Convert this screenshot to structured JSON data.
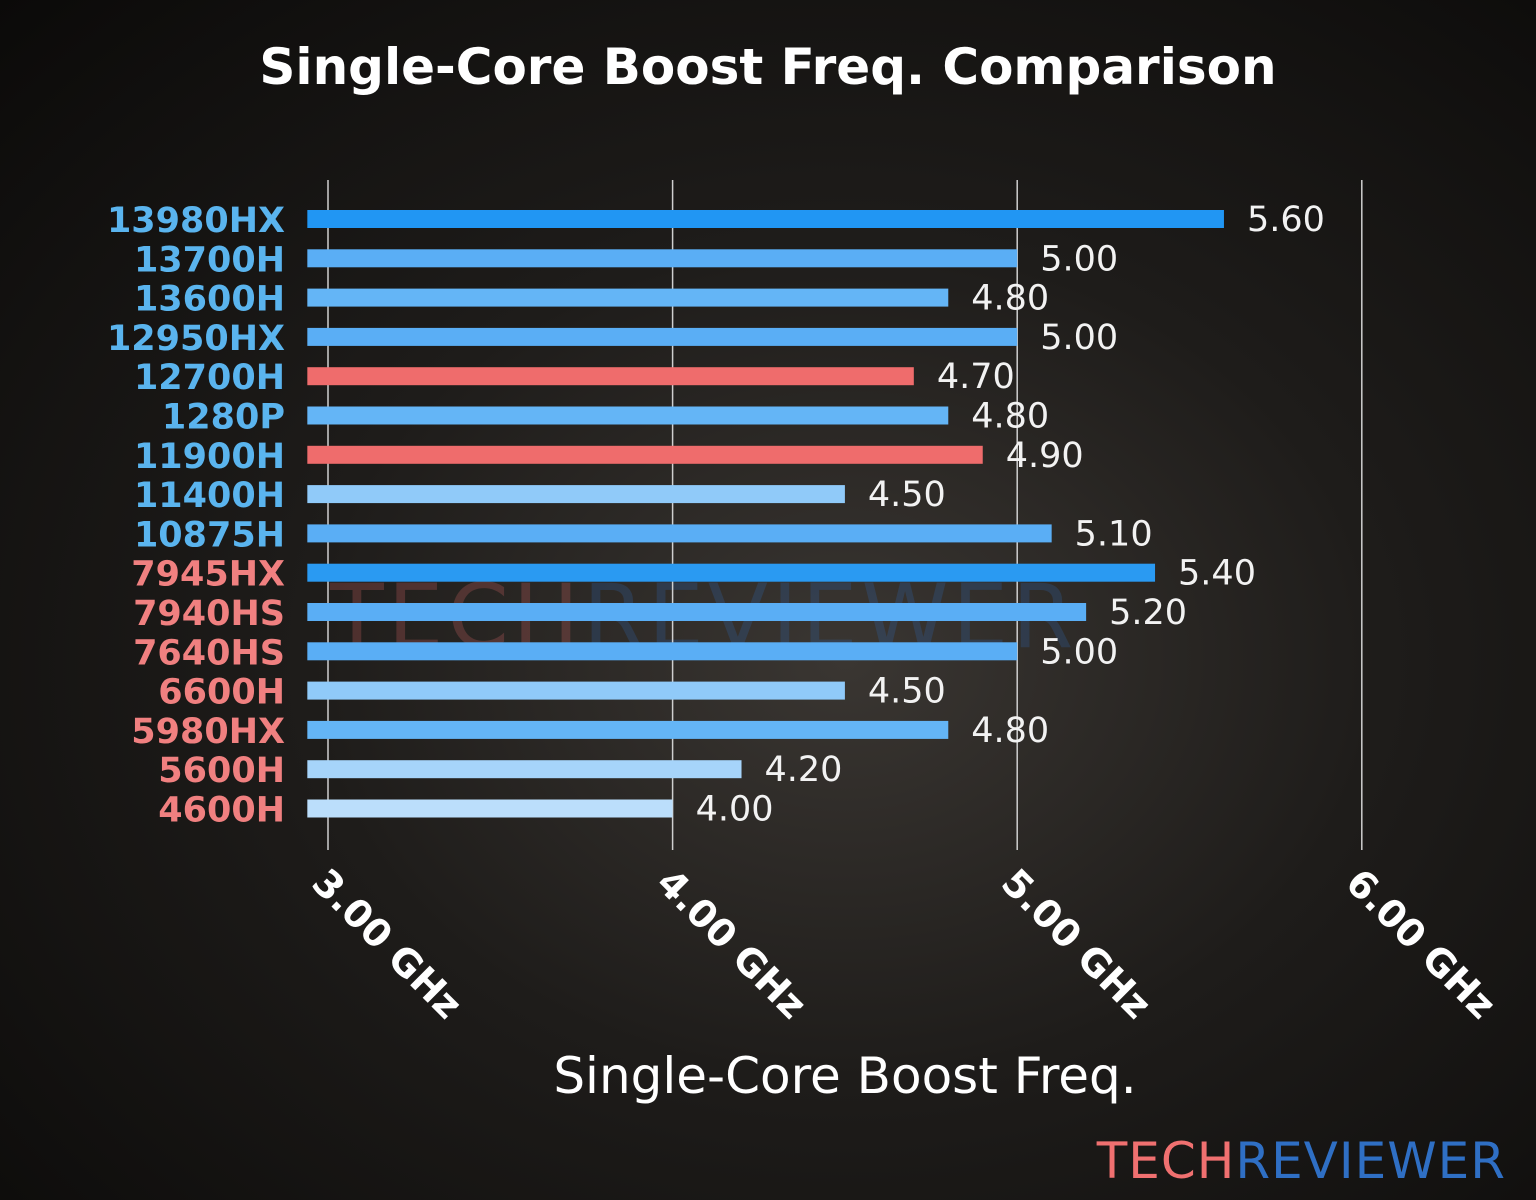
{
  "chart_data": {
    "type": "bar",
    "orientation": "horizontal",
    "title": "Single-Core Boost Freq. Comparison",
    "xlabel": "Single-Core Boost Freq.",
    "ylabel": "",
    "xlim": [
      2.94,
      6.0
    ],
    "xticks": [
      3.0,
      4.0,
      5.0,
      6.0
    ],
    "xtick_labels": [
      "3.00 GHz",
      "4.00 GHz",
      "5.00 GHz",
      "6.00 GHz"
    ],
    "grid": "vertical",
    "categories": [
      "13980HX",
      "13700H",
      "13600H",
      "12950HX",
      "12700H",
      "1280P",
      "11900H",
      "11400H",
      "10875H",
      "7945HX",
      "7940HS",
      "7640HS",
      "6600H",
      "5980HX",
      "5600H",
      "4600H"
    ],
    "values": [
      5.6,
      5.0,
      4.8,
      5.0,
      4.7,
      4.8,
      4.9,
      4.5,
      5.1,
      5.4,
      5.2,
      5.0,
      4.5,
      4.8,
      4.2,
      4.0
    ],
    "data_labels": [
      "5.60",
      "5.00",
      "4.80",
      "5.00",
      "4.70",
      "4.80",
      "4.90",
      "4.50",
      "5.10",
      "5.40",
      "5.20",
      "5.00",
      "4.50",
      "4.80",
      "4.20",
      "4.00"
    ],
    "bar_colors": [
      "#2196f3",
      "#5aaef5",
      "#64b5f6",
      "#5aaef5",
      "#ef6c6c",
      "#64b5f6",
      "#ef6c6c",
      "#90caf9",
      "#5aaef5",
      "#2a9af2",
      "#5aaef5",
      "#5aaef5",
      "#90caf9",
      "#64b5f6",
      "#a6d4fa",
      "#bbdefb"
    ],
    "label_colors": [
      "#5ab4ee",
      "#5ab4ee",
      "#5ab4ee",
      "#5ab4ee",
      "#5ab4ee",
      "#5ab4ee",
      "#5ab4ee",
      "#5ab4ee",
      "#5ab4ee",
      "#f08080",
      "#f08080",
      "#f08080",
      "#f08080",
      "#f08080",
      "#f08080",
      "#f08080"
    ]
  },
  "watermark": {
    "part1": "TECH",
    "part2": "REVIEWER",
    "color1": "#f07070",
    "color2": "#2f6fc4"
  }
}
